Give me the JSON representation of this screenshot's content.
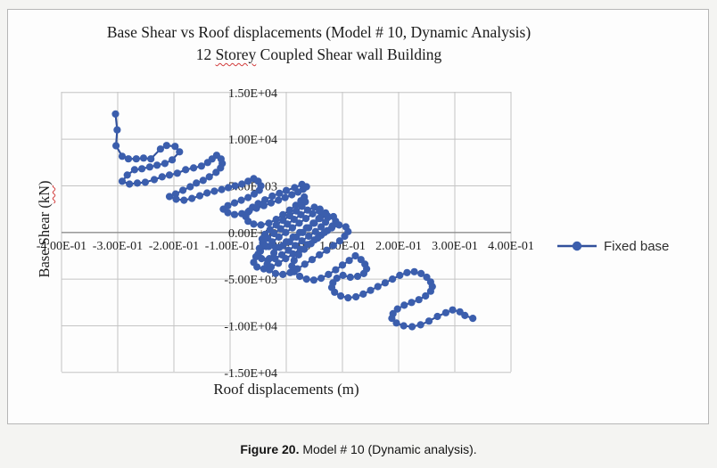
{
  "caption": {
    "label": "Figure 20.",
    "text": " Model # 10 (Dynamic analysis)."
  },
  "chart_data": {
    "type": "line",
    "title": "Base Shear vs Roof displacements (Model # 10, Dynamic Analysis)",
    "subtitle": "12 Storey Coupled Shear wall Building",
    "subtitle_parts": {
      "pre": "12 ",
      "word": "Storey",
      "post": " Coupled Shear wall Building"
    },
    "xlabel": "Roof displacements (m)",
    "ylabel": "Base Shear (kN)",
    "ylabel_parts": {
      "pre": "Base Shear (",
      "word": "kN",
      "post": ")"
    },
    "xlim": [
      -0.4,
      0.4
    ],
    "ylim": [
      -15000,
      15000
    ],
    "grid": true,
    "legend_position": "right",
    "x_tick_values": [
      -0.4,
      -0.3,
      -0.2,
      -0.1,
      0,
      0.1,
      0.2,
      0.3,
      0.4
    ],
    "x_tick_labels": [
      "-4.00E-01",
      "-3.00E-01",
      "-2.00E-01",
      "-1.00E-01",
      "0.00E+00",
      "1.00E-01",
      "2.00E-01",
      "3.00E-01",
      "4.00E-01"
    ],
    "y_tick_values": [
      15000,
      10000,
      5000,
      0,
      -5000,
      -10000,
      -15000
    ],
    "y_tick_labels": [
      "1.50E+04",
      "1.00E+04",
      "5.00E+03",
      "0.00E+00",
      "-5.00E+03",
      "-1.00E+04",
      "-1.50E+04"
    ],
    "gridline_color": "#c4c4c4",
    "zero_axis_color": "#8d8d8d",
    "series": [
      {
        "name": "Fixed base",
        "marker": "circle",
        "color": "#3b5ead",
        "line_color": "#31509c",
        "points": [
          [
            -0.304,
            12700
          ],
          [
            -0.301,
            11000
          ],
          [
            -0.303,
            9300
          ],
          [
            -0.292,
            8170
          ],
          [
            -0.281,
            7890
          ],
          [
            -0.267,
            7890
          ],
          [
            -0.254,
            7980
          ],
          [
            -0.241,
            7890
          ],
          [
            -0.224,
            8940
          ],
          [
            -0.213,
            9330
          ],
          [
            -0.198,
            9230
          ],
          [
            -0.19,
            8650
          ],
          [
            -0.203,
            7790
          ],
          [
            -0.216,
            7400
          ],
          [
            -0.23,
            7210
          ],
          [
            -0.243,
            7020
          ],
          [
            -0.257,
            6830
          ],
          [
            -0.27,
            6730
          ],
          [
            -0.283,
            6150
          ],
          [
            -0.292,
            5480
          ],
          [
            -0.279,
            5190
          ],
          [
            -0.265,
            5290
          ],
          [
            -0.251,
            5380
          ],
          [
            -0.235,
            5670
          ],
          [
            -0.221,
            5960
          ],
          [
            -0.208,
            6150
          ],
          [
            -0.194,
            6350
          ],
          [
            -0.179,
            6730
          ],
          [
            -0.165,
            6920
          ],
          [
            -0.151,
            7115
          ],
          [
            -0.14,
            7500
          ],
          [
            -0.132,
            7885
          ],
          [
            -0.124,
            8270
          ],
          [
            -0.116,
            7885
          ],
          [
            -0.114,
            7400
          ],
          [
            -0.117,
            6920
          ],
          [
            -0.125,
            6440
          ],
          [
            -0.137,
            5960
          ],
          [
            -0.148,
            5580
          ],
          [
            -0.16,
            5290
          ],
          [
            -0.171,
            4900
          ],
          [
            -0.184,
            4520
          ],
          [
            -0.197,
            4130
          ],
          [
            -0.208,
            3850
          ],
          [
            -0.196,
            3560
          ],
          [
            -0.182,
            3460
          ],
          [
            -0.168,
            3650
          ],
          [
            -0.154,
            3940
          ],
          [
            -0.141,
            4230
          ],
          [
            -0.128,
            4420
          ],
          [
            -0.115,
            4610
          ],
          [
            -0.103,
            4810
          ],
          [
            -0.091,
            5000
          ],
          [
            -0.079,
            5190
          ],
          [
            -0.068,
            5480
          ],
          [
            -0.058,
            5770
          ],
          [
            -0.05,
            5480
          ],
          [
            -0.045,
            5000
          ],
          [
            -0.048,
            4520
          ],
          [
            -0.057,
            4130
          ],
          [
            -0.068,
            3750
          ],
          [
            -0.08,
            3460
          ],
          [
            -0.092,
            3170
          ],
          [
            -0.104,
            2880
          ],
          [
            -0.112,
            2500
          ],
          [
            -0.104,
            2120
          ],
          [
            -0.092,
            1920
          ],
          [
            -0.079,
            2020
          ],
          [
            -0.066,
            2310
          ],
          [
            -0.053,
            2600
          ],
          [
            -0.04,
            2880
          ],
          [
            -0.027,
            3170
          ],
          [
            -0.014,
            3460
          ],
          [
            -0.002,
            3750
          ],
          [
            0.01,
            4040
          ],
          [
            0.021,
            4330
          ],
          [
            0.03,
            4620
          ],
          [
            0.036,
            4900
          ],
          [
            0.028,
            5150
          ],
          [
            0.015,
            4810
          ],
          [
            0.0,
            4500
          ],
          [
            -0.012,
            4200
          ],
          [
            -0.025,
            3900
          ],
          [
            -0.038,
            3500
          ],
          [
            -0.05,
            3100
          ],
          [
            -0.06,
            2700
          ],
          [
            -0.068,
            2200
          ],
          [
            -0.072,
            1700
          ],
          [
            -0.068,
            1200
          ],
          [
            -0.058,
            900
          ],
          [
            -0.045,
            800
          ],
          [
            -0.031,
            1000
          ],
          [
            -0.018,
            1400
          ],
          [
            -0.006,
            1900
          ],
          [
            0.006,
            2400
          ],
          [
            0.017,
            2900
          ],
          [
            0.026,
            3400
          ],
          [
            0.032,
            3800
          ],
          [
            0.034,
            3300
          ],
          [
            0.028,
            2800
          ],
          [
            0.018,
            2300
          ],
          [
            0.006,
            1800
          ],
          [
            -0.006,
            1300
          ],
          [
            -0.018,
            800
          ],
          [
            -0.029,
            300
          ],
          [
            -0.038,
            -200
          ],
          [
            -0.043,
            -700
          ],
          [
            -0.04,
            -1200
          ],
          [
            -0.031,
            -1500
          ],
          [
            -0.019,
            -1600
          ],
          [
            -0.006,
            -1400
          ],
          [
            0.006,
            -1000
          ],
          [
            0.018,
            -500
          ],
          [
            0.029,
            0
          ],
          [
            0.04,
            500
          ],
          [
            0.05,
            1000
          ],
          [
            0.058,
            1500
          ],
          [
            0.063,
            2000
          ],
          [
            0.06,
            2500
          ],
          [
            0.05,
            2700
          ],
          [
            0.038,
            2400
          ],
          [
            0.026,
            1900
          ],
          [
            0.014,
            1400
          ],
          [
            0.002,
            900
          ],
          [
            -0.01,
            400
          ],
          [
            -0.022,
            -100
          ],
          [
            -0.033,
            -600
          ],
          [
            -0.042,
            -1100
          ],
          [
            -0.048,
            -1700
          ],
          [
            -0.05,
            -2300
          ],
          [
            -0.044,
            -2800
          ],
          [
            -0.033,
            -3000
          ],
          [
            -0.02,
            -2800
          ],
          [
            -0.008,
            -2400
          ],
          [
            0.004,
            -1900
          ],
          [
            0.016,
            -1400
          ],
          [
            0.028,
            -900
          ],
          [
            0.04,
            -400
          ],
          [
            0.052,
            100
          ],
          [
            0.062,
            600
          ],
          [
            0.07,
            1100
          ],
          [
            0.074,
            1600
          ],
          [
            0.07,
            2100
          ],
          [
            0.059,
            2300
          ],
          [
            0.047,
            2000
          ],
          [
            0.035,
            1500
          ],
          [
            0.023,
            1000
          ],
          [
            0.011,
            500
          ],
          [
            -0.001,
            0
          ],
          [
            -0.013,
            -500
          ],
          [
            -0.025,
            -1000
          ],
          [
            -0.036,
            -1500
          ],
          [
            -0.046,
            -2000
          ],
          [
            -0.054,
            -2600
          ],
          [
            -0.058,
            -3200
          ],
          [
            -0.052,
            -3700
          ],
          [
            -0.04,
            -3900
          ],
          [
            -0.027,
            -3700
          ],
          [
            -0.014,
            -3300
          ],
          [
            -0.001,
            -2800
          ],
          [
            0.012,
            -2300
          ],
          [
            0.025,
            -1800
          ],
          [
            0.038,
            -1300
          ],
          [
            0.05,
            -800
          ],
          [
            0.062,
            -300
          ],
          [
            0.073,
            200
          ],
          [
            0.082,
            700
          ],
          [
            0.088,
            1200
          ],
          [
            0.084,
            1700
          ],
          [
            0.073,
            1800
          ],
          [
            0.06,
            1500
          ],
          [
            0.048,
            1000
          ],
          [
            0.036,
            500
          ],
          [
            0.024,
            0
          ],
          [
            0.012,
            -500
          ],
          [
            0.0,
            -1000
          ],
          [
            -0.012,
            -1600
          ],
          [
            -0.022,
            -2200
          ],
          [
            -0.03,
            -2800
          ],
          [
            -0.034,
            -3400
          ],
          [
            -0.03,
            -4000
          ],
          [
            -0.019,
            -4400
          ],
          [
            -0.006,
            -4500
          ],
          [
            0.007,
            -4300
          ],
          [
            0.02,
            -3900
          ],
          [
            0.033,
            -3400
          ],
          [
            0.046,
            -2900
          ],
          [
            0.059,
            -2400
          ],
          [
            0.072,
            -1900
          ],
          [
            0.084,
            -1400
          ],
          [
            0.095,
            -900
          ],
          [
            0.104,
            -400
          ],
          [
            0.11,
            100
          ],
          [
            0.106,
            600
          ],
          [
            0.094,
            800
          ],
          [
            0.081,
            500
          ],
          [
            0.068,
            0
          ],
          [
            0.056,
            -600
          ],
          [
            0.044,
            -1200
          ],
          [
            0.032,
            -1800
          ],
          [
            0.022,
            -2400
          ],
          [
            0.014,
            -3000
          ],
          [
            0.01,
            -3600
          ],
          [
            0.014,
            -4200
          ],
          [
            0.024,
            -4700
          ],
          [
            0.036,
            -5000
          ],
          [
            0.049,
            -5100
          ],
          [
            0.062,
            -4900
          ],
          [
            0.075,
            -4500
          ],
          [
            0.088,
            -4000
          ],
          [
            0.1,
            -3500
          ],
          [
            0.112,
            -3000
          ],
          [
            0.123,
            -2500
          ],
          [
            0.133,
            -2900
          ],
          [
            0.14,
            -3400
          ],
          [
            0.143,
            -3900
          ],
          [
            0.138,
            -4400
          ],
          [
            0.127,
            -4700
          ],
          [
            0.114,
            -4800
          ],
          [
            0.101,
            -4600
          ],
          [
            0.09,
            -4900
          ],
          [
            0.083,
            -5400
          ],
          [
            0.081,
            -5900
          ],
          [
            0.086,
            -6400
          ],
          [
            0.097,
            -6800
          ],
          [
            0.11,
            -7000
          ],
          [
            0.124,
            -6900
          ],
          [
            0.137,
            -6600
          ],
          [
            0.15,
            -6200
          ],
          [
            0.163,
            -5800
          ],
          [
            0.176,
            -5400
          ],
          [
            0.189,
            -5000
          ],
          [
            0.202,
            -4600
          ],
          [
            0.215,
            -4300
          ],
          [
            0.228,
            -4200
          ],
          [
            0.24,
            -4400
          ],
          [
            0.25,
            -4800
          ],
          [
            0.257,
            -5300
          ],
          [
            0.26,
            -5800
          ],
          [
            0.257,
            -6300
          ],
          [
            0.248,
            -6800
          ],
          [
            0.236,
            -7200
          ],
          [
            0.223,
            -7500
          ],
          [
            0.21,
            -7800
          ],
          [
            0.198,
            -8200
          ],
          [
            0.19,
            -8700
          ],
          [
            0.188,
            -9200
          ],
          [
            0.196,
            -9700
          ],
          [
            0.209,
            -10000
          ],
          [
            0.224,
            -10100
          ],
          [
            0.239,
            -9900
          ],
          [
            0.254,
            -9500
          ],
          [
            0.269,
            -9000
          ],
          [
            0.284,
            -8600
          ],
          [
            0.296,
            -8300
          ],
          [
            0.309,
            -8500
          ],
          [
            0.318,
            -8900
          ],
          [
            0.332,
            -9200
          ]
        ]
      }
    ]
  }
}
